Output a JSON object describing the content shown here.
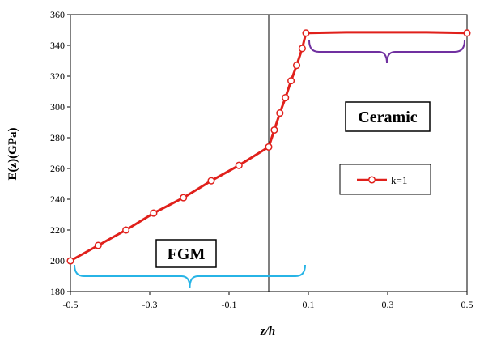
{
  "chart_data": {
    "type": "line",
    "xlabel": "z/h",
    "ylabel": "E(z)(GPa)",
    "ylim": [
      180,
      360
    ],
    "y_ticks": [
      "180",
      "200",
      "220",
      "240",
      "260",
      "280",
      "300",
      "320",
      "340",
      "360"
    ],
    "x_ticks": [
      "-0.5",
      "-0.3",
      "-0.1",
      "0.1",
      "0.1",
      "0.3",
      "0.5"
    ],
    "grid": false,
    "legend_position": "right-middle",
    "series": [
      {
        "name": "k=1",
        "color": "#e0201b",
        "marker": "circle",
        "x": [
          -0.5,
          -0.43,
          -0.36,
          -0.29,
          -0.215,
          -0.145,
          -0.075,
          0,
          0.015,
          0.03,
          0.045,
          0.06,
          0.075,
          0.09,
          0.1,
          0.2,
          0.3,
          0.4,
          0.5
        ],
        "values": [
          200,
          210,
          220,
          231,
          241,
          252,
          262,
          274,
          285,
          296,
          306,
          317,
          327,
          338,
          348,
          348.5,
          348.5,
          348.5,
          348
        ],
        "marker_indices": [
          0,
          1,
          2,
          3,
          4,
          5,
          6,
          7,
          8,
          9,
          10,
          11,
          12,
          13,
          14,
          18
        ]
      }
    ],
    "annotations": [
      {
        "text": "FGM",
        "brace_color": "#27b4e6"
      },
      {
        "text": "Ceramic",
        "brace_color": "#7030a0"
      }
    ]
  }
}
